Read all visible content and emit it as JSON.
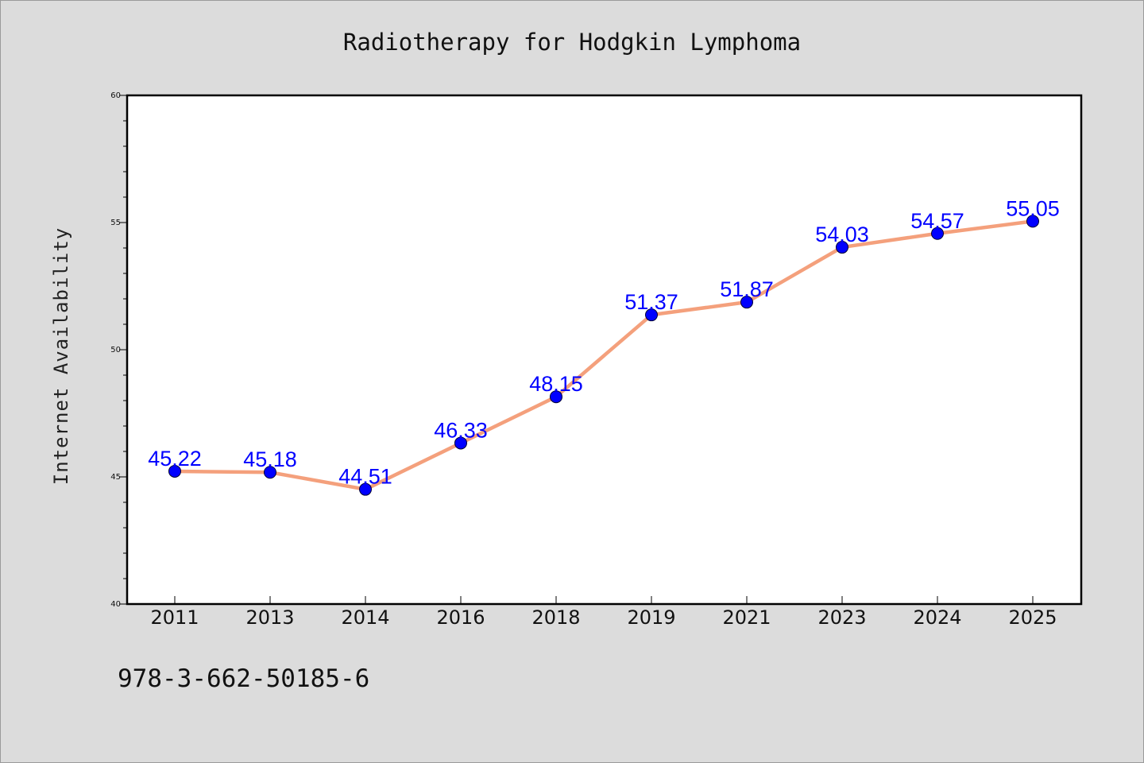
{
  "chart_data": {
    "type": "line",
    "title": "Radiotherapy for Hodgkin Lymphoma",
    "xlabel": "",
    "ylabel": "Internet Availability",
    "categories": [
      "2011",
      "2013",
      "2014",
      "2016",
      "2018",
      "2019",
      "2021",
      "2023",
      "2024",
      "2025"
    ],
    "series": [
      {
        "values": [
          45.22,
          45.18,
          44.51,
          46.33,
          48.15,
          51.37,
          51.87,
          54.03,
          54.57,
          55.05
        ],
        "data_labels": [
          "45.22",
          "45.18",
          "44.51",
          "46.33",
          "48.15",
          "51.37",
          "51.87",
          "54.03",
          "54.57",
          "55.05"
        ]
      }
    ],
    "ylim": [
      40,
      60
    ],
    "y_ticks": [
      "40",
      "45",
      "50",
      "55",
      "60"
    ],
    "grid": false,
    "legend": "none",
    "colors": {
      "line": "#f4a07c",
      "marker": "#0000ff",
      "marker_edge": "#000033",
      "data_label": "#0000ff",
      "plot_background": "#ffffff",
      "figure_background": "#dcdcdc"
    }
  },
  "footer": {
    "isbn": "978-3-662-50185-6"
  }
}
